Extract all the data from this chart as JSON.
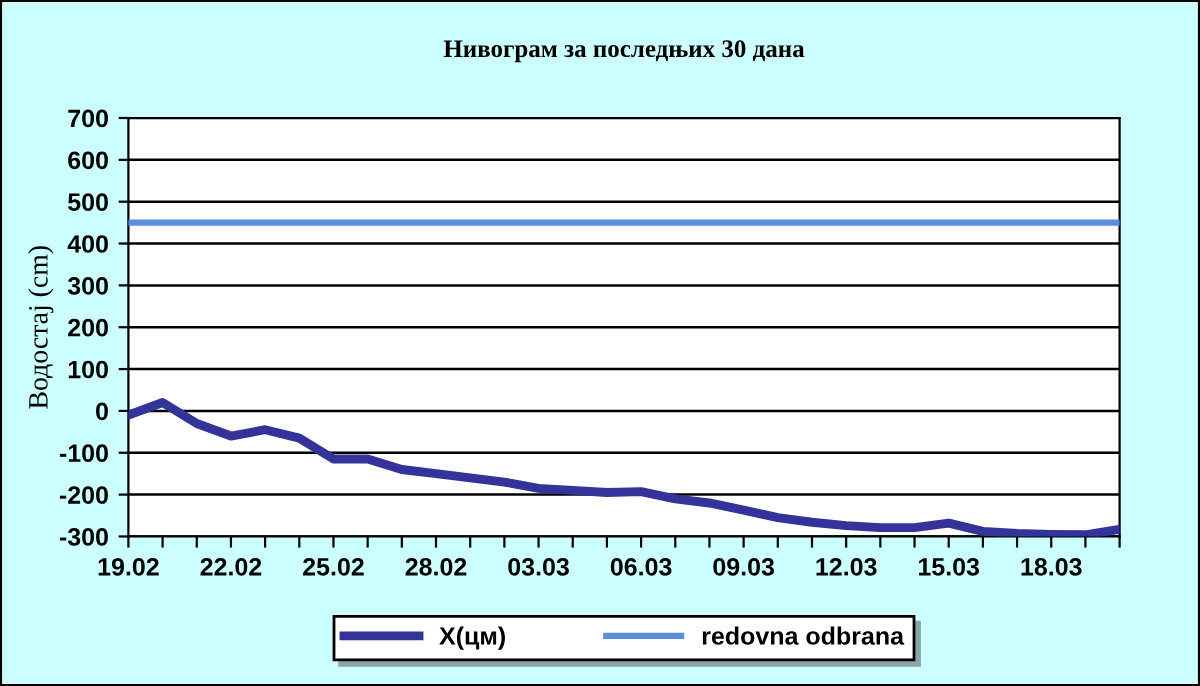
{
  "chart_data": {
    "type": "line",
    "title": "Нивограм за последњих 30 дана",
    "ylabel": "Водостај (cm)",
    "categories": [
      "19.02",
      null,
      null,
      "22.02",
      null,
      null,
      "25.02",
      null,
      null,
      "28.02",
      null,
      null,
      "03.03",
      null,
      null,
      "06.03",
      null,
      null,
      "09.03",
      null,
      null,
      "12.03",
      null,
      null,
      "15.03",
      null,
      null,
      "18.03",
      null,
      null
    ],
    "series": [
      {
        "name": "X(цм)",
        "color": "#333399",
        "values": [
          -10,
          20,
          -30,
          -60,
          -45,
          -65,
          -115,
          -115,
          -140,
          -150,
          -160,
          -170,
          -185,
          -190,
          -195,
          -193,
          -210,
          -220,
          -237,
          -255,
          -266,
          -274,
          -279,
          -279,
          -268,
          -288,
          -293,
          -295,
          -296,
          -283
        ]
      },
      {
        "name": "redovna odbrana",
        "color": "#5b8fdc",
        "values": [
          450,
          450,
          450,
          450,
          450,
          450,
          450,
          450,
          450,
          450,
          450,
          450,
          450,
          450,
          450,
          450,
          450,
          450,
          450,
          450,
          450,
          450,
          450,
          450,
          450,
          450,
          450,
          450,
          450,
          450
        ]
      }
    ],
    "ylim": [
      -300,
      700
    ],
    "yticks": [
      -300,
      -200,
      -100,
      0,
      100,
      200,
      300,
      400,
      500,
      600,
      700
    ],
    "grid": "y",
    "legend": "bottom",
    "marker": "none",
    "line_style": "solid"
  }
}
